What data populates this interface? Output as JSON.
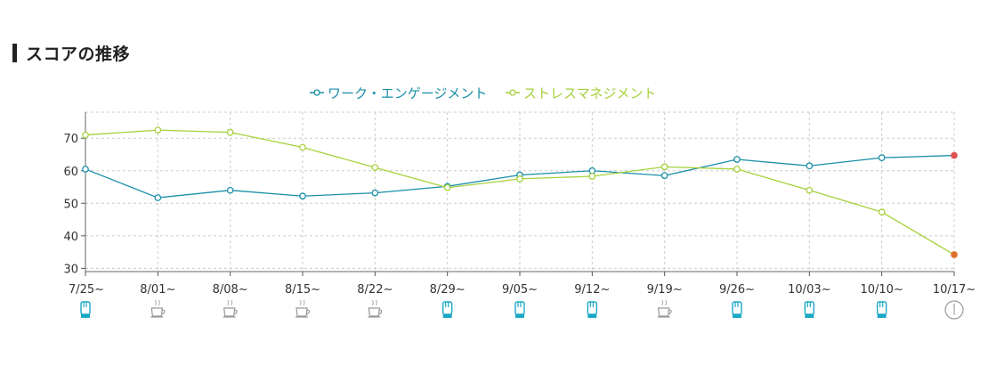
{
  "section": {
    "title": "スコアの推移"
  },
  "chart_data": {
    "type": "line",
    "title": "",
    "xlabel": "",
    "ylabel": "",
    "ylim": [
      29,
      78
    ],
    "y_ticks": [
      30,
      40,
      50,
      60,
      70
    ],
    "grid": true,
    "legend_position": "top-center",
    "categories": [
      "7/25~",
      "8/01~",
      "8/08~",
      "8/15~",
      "8/22~",
      "8/29~",
      "9/05~",
      "9/12~",
      "9/19~",
      "9/26~",
      "10/03~",
      "10/10~",
      "10/17~"
    ],
    "week_icons": [
      "hand-icon",
      "coffee-icon",
      "coffee-icon",
      "coffee-icon",
      "coffee-icon",
      "hand-icon",
      "hand-icon",
      "hand-icon",
      "coffee-icon",
      "hand-icon",
      "hand-icon",
      "hand-icon",
      "clock-icon"
    ],
    "series": [
      {
        "name": "ワーク・エンゲージメント",
        "color": "#1a8fa8",
        "values": [
          60.5,
          51.7,
          54.0,
          52.2,
          53.2,
          55.2,
          58.7,
          60.0,
          58.5,
          63.5,
          61.5,
          64.0,
          64.7
        ],
        "last_point_color": "#e05050"
      },
      {
        "name": "ストレスマネジメント",
        "color": "#a6d13c",
        "values": [
          71.0,
          72.5,
          71.8,
          67.2,
          61.0,
          54.8,
          57.5,
          58.3,
          61.2,
          60.5,
          54.0,
          47.3,
          34.2
        ],
        "last_point_color": "#e07030"
      }
    ]
  }
}
